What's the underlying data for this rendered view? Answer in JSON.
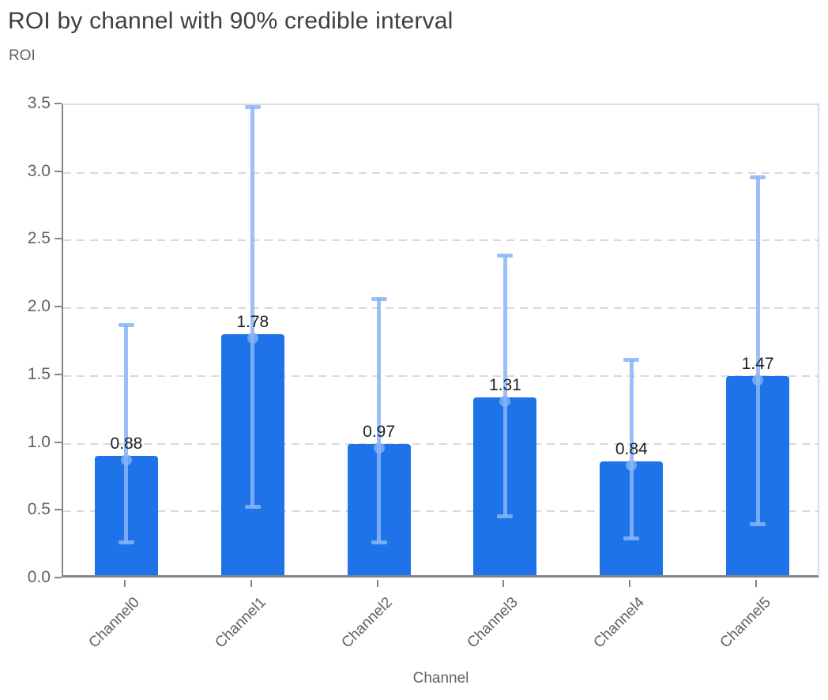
{
  "chart_data": {
    "type": "bar",
    "title": "ROI by channel with 90% credible interval",
    "ylabel": "ROI",
    "xlabel": "Channel",
    "categories": [
      "Channel0",
      "Channel1",
      "Channel2",
      "Channel3",
      "Channel4",
      "Channel5"
    ],
    "values": [
      0.88,
      1.78,
      0.97,
      1.31,
      0.84,
      1.47
    ],
    "value_labels": [
      "0.88",
      "1.78",
      "0.97",
      "1.31",
      "0.84",
      "1.47"
    ],
    "error_low": [
      0.27,
      0.53,
      0.27,
      0.46,
      0.3,
      0.4
    ],
    "error_high": [
      1.88,
      3.49,
      2.07,
      2.39,
      1.62,
      2.97
    ],
    "ylim": [
      0,
      3.5
    ],
    "yticks": [
      0.0,
      0.5,
      1.0,
      1.5,
      2.0,
      2.5,
      3.0,
      3.5
    ],
    "grid": "horizontal dashed",
    "legend": "none",
    "colors": {
      "bar": "#1e73e8",
      "error_bar": "#8ab4f8",
      "grid": "#d9d9d9",
      "axis": "#80868b",
      "plot_border": "#dadce0",
      "title_text": "#3c4043",
      "tick_text": "#5f6368",
      "value_text": "#202124"
    }
  }
}
